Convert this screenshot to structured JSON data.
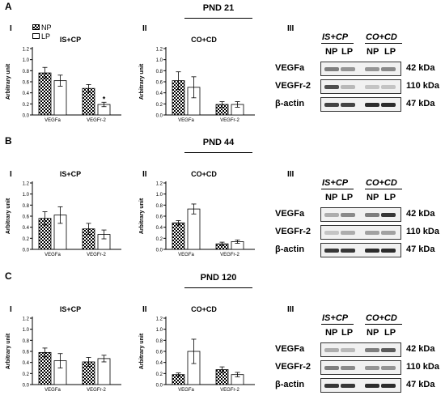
{
  "legend": {
    "np": "NP",
    "lp": "LP"
  },
  "blot": {
    "hdr_left": "IS+CP",
    "hdr_right": "CO+CD",
    "lane_np": "NP",
    "lane_lp": "LP",
    "rows": [
      {
        "label": "VEGFa",
        "kda": "42 kDa"
      },
      {
        "label": "VEGFr-2",
        "kda": "110 kDa"
      },
      {
        "label": "β-actin",
        "kda": "47 kDa"
      }
    ]
  },
  "sections": [
    {
      "letter": "A",
      "pnd": "PND 21",
      "roman_1": "I",
      "roman_2": "II",
      "roman_3": "III"
    },
    {
      "letter": "B",
      "pnd": "PND 44",
      "roman_1": "I",
      "roman_2": "II",
      "roman_3": "III"
    },
    {
      "letter": "C",
      "pnd": "PND 120",
      "roman_1": "I",
      "roman_2": "II",
      "roman_3": "III"
    }
  ],
  "chart_data": [
    {
      "type": "bar",
      "section": "A",
      "panel": "I",
      "title": "IS+CP",
      "ylabel": "Arbitrary unit",
      "categories": [
        "VEGFa",
        "VEGFr-2"
      ],
      "ylim": [
        0,
        1.2
      ],
      "yticks": [
        "0.0",
        "0.2",
        "0.4",
        "0.6",
        "0.8",
        "1.0",
        "1.2"
      ],
      "series": [
        {
          "name": "NP",
          "values": [
            0.76,
            0.48
          ],
          "errors": [
            0.1,
            0.07
          ]
        },
        {
          "name": "LP",
          "values": [
            0.62,
            0.19
          ],
          "errors": [
            0.1,
            0.04
          ]
        }
      ],
      "annotations": [
        {
          "text": "*",
          "category": "VEGFr-2",
          "series": "LP"
        }
      ]
    },
    {
      "type": "bar",
      "section": "A",
      "panel": "II",
      "title": "CO+CD",
      "ylabel": "Arbitrary unit",
      "categories": [
        "VEGFa",
        "VEGFr-2"
      ],
      "ylim": [
        0,
        1.2
      ],
      "yticks": [
        "0.0",
        "0.2",
        "0.4",
        "0.6",
        "0.8",
        "1.0",
        "1.2"
      ],
      "series": [
        {
          "name": "NP",
          "values": [
            0.62,
            0.19
          ],
          "errors": [
            0.16,
            0.05
          ]
        },
        {
          "name": "LP",
          "values": [
            0.5,
            0.19
          ],
          "errors": [
            0.19,
            0.05
          ]
        }
      ]
    },
    {
      "type": "bar",
      "section": "B",
      "panel": "I",
      "title": "IS+CP",
      "ylabel": "Arbitrary unit",
      "categories": [
        "VEGFa",
        "VEGFr-2"
      ],
      "ylim": [
        0,
        1.2
      ],
      "yticks": [
        "0.0",
        "0.2",
        "0.4",
        "0.6",
        "0.8",
        "1.0",
        "1.2"
      ],
      "series": [
        {
          "name": "NP",
          "values": [
            0.56,
            0.37
          ],
          "errors": [
            0.12,
            0.1
          ]
        },
        {
          "name": "LP",
          "values": [
            0.62,
            0.27
          ],
          "errors": [
            0.15,
            0.08
          ]
        }
      ]
    },
    {
      "type": "bar",
      "section": "B",
      "panel": "II",
      "title": "CO+CD",
      "ylabel": "Arbitrary unit",
      "categories": [
        "VEGFa",
        "VEGFr-2"
      ],
      "ylim": [
        0,
        1.2
      ],
      "yticks": [
        "0.0",
        "0.2",
        "0.4",
        "0.6",
        "0.8",
        "1.0",
        "1.2"
      ],
      "series": [
        {
          "name": "NP",
          "values": [
            0.48,
            0.1
          ],
          "errors": [
            0.04,
            0.03
          ]
        },
        {
          "name": "LP",
          "values": [
            0.73,
            0.14
          ],
          "errors": [
            0.09,
            0.03
          ]
        }
      ]
    },
    {
      "type": "bar",
      "section": "C",
      "panel": "I",
      "title": "IS+CP",
      "ylabel": "Arbitrary unit",
      "categories": [
        "VEGFa",
        "VEGFr-2"
      ],
      "ylim": [
        0,
        1.2
      ],
      "yticks": [
        "0.0",
        "0.2",
        "0.4",
        "0.6",
        "0.8",
        "1.0",
        "1.2"
      ],
      "series": [
        {
          "name": "NP",
          "values": [
            0.58,
            0.41
          ],
          "errors": [
            0.08,
            0.08
          ]
        },
        {
          "name": "LP",
          "values": [
            0.43,
            0.47
          ],
          "errors": [
            0.13,
            0.06
          ]
        }
      ]
    },
    {
      "type": "bar",
      "section": "C",
      "panel": "II",
      "title": "CO+CD",
      "ylabel": "Arbitrary unit",
      "categories": [
        "VEGFa",
        "VEGFr-2"
      ],
      "ylim": [
        0,
        1.2
      ],
      "yticks": [
        "0.0",
        "0.2",
        "0.4",
        "0.6",
        "0.8",
        "1.0",
        "1.2"
      ],
      "series": [
        {
          "name": "NP",
          "values": [
            0.18,
            0.27
          ],
          "errors": [
            0.03,
            0.05
          ]
        },
        {
          "name": "LP",
          "values": [
            0.6,
            0.18
          ],
          "errors": [
            0.22,
            0.04
          ]
        }
      ]
    }
  ]
}
